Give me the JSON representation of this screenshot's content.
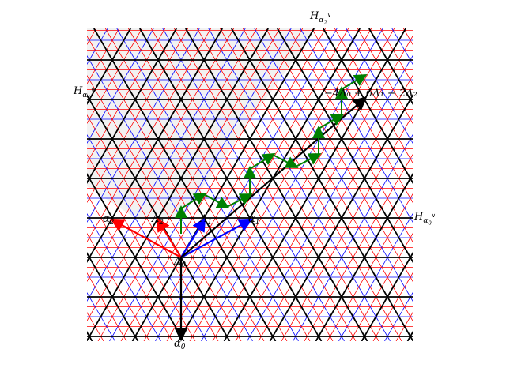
{
  "colors": {
    "wall_black": "#000000",
    "wall_red": "#ff0000",
    "wall_blue": "#0000ff",
    "path_green": "#008000",
    "chamber_fill": "#f2f2f2"
  },
  "labels": {
    "hyperplane_alpha2": {
      "base": "H",
      "sub": "α",
      "subsub": "2",
      "sup": "∨"
    },
    "hyperplane_alpha1": {
      "base": "H",
      "sub": "α",
      "subsub": "1",
      "sup": "∨"
    },
    "hyperplane_alpha0": {
      "base": "H",
      "sub": "α",
      "subsub": "0",
      "sup": "∨"
    },
    "weight_formula": "−4Λ₀ + 6Λ₁ − 2Λ₂",
    "lambda0": {
      "base": "Λ",
      "sub": "0"
    },
    "lambda1": {
      "base": "Λ",
      "sub": "1"
    },
    "lambda2": {
      "base": "Λ",
      "sub": "2"
    },
    "alpha0": {
      "base": "α",
      "sub": "0"
    },
    "alpha1": {
      "base": "α",
      "sub": "1"
    },
    "alpha2": {
      "base": "α",
      "sub": "2"
    }
  },
  "lattice": {
    "origin_label": "Λ0",
    "path_steps": [
      "N",
      "NE",
      "ESE",
      "N",
      "NE",
      "ESE",
      "N",
      "NE",
      "ESE",
      "N",
      "NE",
      "ESE",
      "N",
      "NE"
    ]
  }
}
